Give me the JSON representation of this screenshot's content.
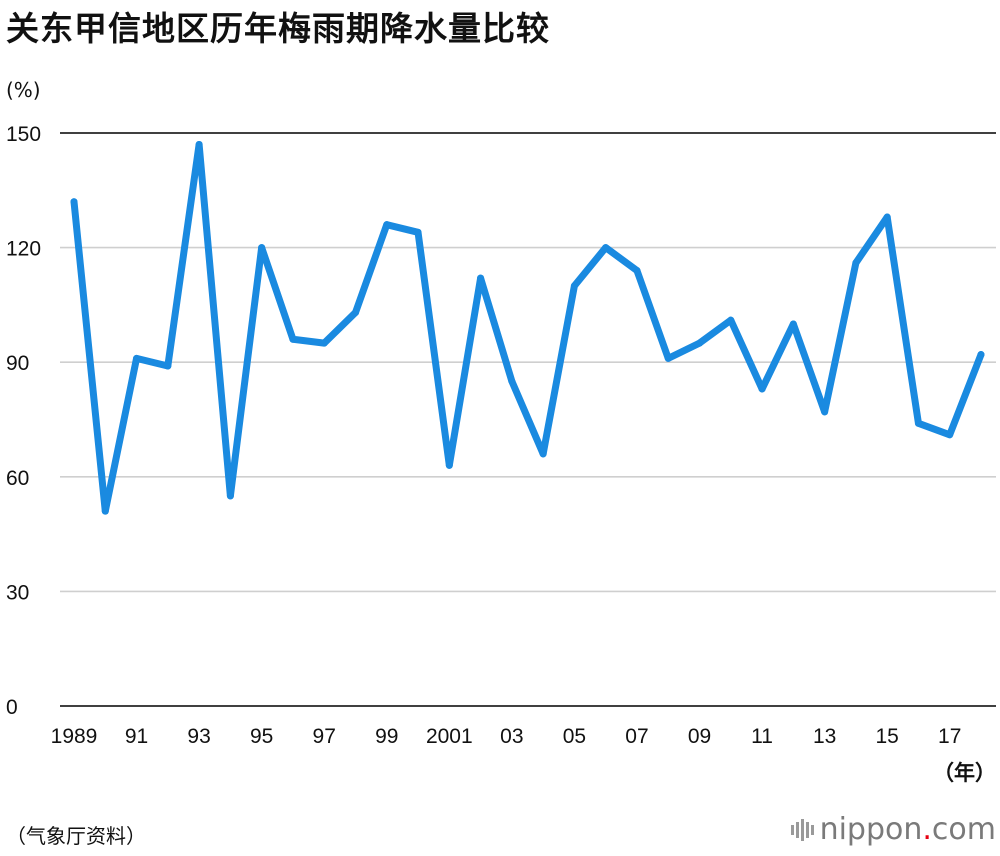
{
  "title": "关东甲信地区历年梅雨期降水量比较",
  "source": "（气象厅资料）",
  "logo": {
    "prefix": "nippon",
    "suffix": "com"
  },
  "colors": {
    "line": "#1a8ae0",
    "grid": "#cfcfcf",
    "axis": "#000000"
  },
  "chart_data": {
    "type": "line",
    "title": "关东甲信地区历年梅雨期降水量比较",
    "ylabel": "(%)",
    "xlabel": "（年）",
    "ylim": [
      0,
      150
    ],
    "yticks": [
      0,
      30,
      60,
      90,
      120,
      150
    ],
    "grid": true,
    "x": [
      1989,
      1990,
      1991,
      1992,
      1993,
      1994,
      1995,
      1996,
      1997,
      1998,
      1999,
      2000,
      2001,
      2002,
      2003,
      2004,
      2005,
      2006,
      2007,
      2008,
      2009,
      2010,
      2011,
      2012,
      2013,
      2014,
      2015,
      2016,
      2017,
      2018
    ],
    "xtick_labels": [
      {
        "year": 1989,
        "label": "1989"
      },
      {
        "year": 1991,
        "label": "91"
      },
      {
        "year": 1993,
        "label": "93"
      },
      {
        "year": 1995,
        "label": "95"
      },
      {
        "year": 1997,
        "label": "97"
      },
      {
        "year": 1999,
        "label": "99"
      },
      {
        "year": 2001,
        "label": "2001"
      },
      {
        "year": 2003,
        "label": "03"
      },
      {
        "year": 2005,
        "label": "05"
      },
      {
        "year": 2007,
        "label": "07"
      },
      {
        "year": 2009,
        "label": "09"
      },
      {
        "year": 2011,
        "label": "11"
      },
      {
        "year": 2013,
        "label": "13"
      },
      {
        "year": 2015,
        "label": "15"
      },
      {
        "year": 2017,
        "label": "17"
      }
    ],
    "series": [
      {
        "values": [
          132,
          51,
          91,
          89,
          147,
          55,
          120,
          96,
          95,
          103,
          126,
          124,
          63,
          112,
          85,
          66,
          110,
          120,
          114,
          91,
          95,
          101,
          83,
          100,
          77,
          116,
          128,
          74,
          71,
          92
        ]
      }
    ]
  }
}
